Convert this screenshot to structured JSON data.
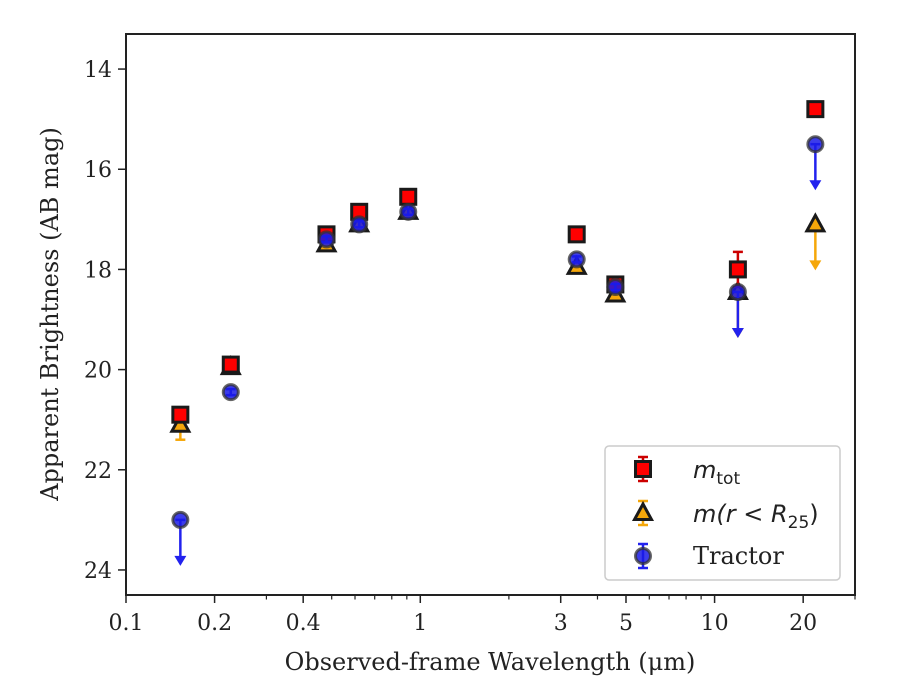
{
  "chart_data": {
    "type": "scatter",
    "xlabel": "Observed-frame Wavelength (μm)",
    "ylabel": "Apparent Brightness (AB mag)",
    "xscale": "log",
    "xlim": [
      0.1,
      30
    ],
    "ylim": [
      24.5,
      13.3
    ],
    "y_inverted": true,
    "x_ticks": [
      {
        "value": 0.1,
        "label": "0.1"
      },
      {
        "value": 0.2,
        "label": "0.2"
      },
      {
        "value": 0.4,
        "label": "0.4"
      },
      {
        "value": 1,
        "label": "1"
      },
      {
        "value": 3,
        "label": "3"
      },
      {
        "value": 5,
        "label": "5"
      },
      {
        "value": 10,
        "label": "10"
      },
      {
        "value": 20,
        "label": "20"
      }
    ],
    "y_ticks": [
      14,
      16,
      18,
      20,
      22,
      24
    ],
    "grid": false,
    "legend_position": "bottom-right",
    "series": [
      {
        "name": "m_tot",
        "marker": "square",
        "face_color": "#ff0000",
        "edge_color": "#1a1a1a",
        "errbar_color": "#cc0000",
        "points": [
          {
            "x": 0.153,
            "y": 20.9
          },
          {
            "x": 0.227,
            "y": 19.9
          },
          {
            "x": 0.48,
            "y": 17.3
          },
          {
            "x": 0.62,
            "y": 16.85
          },
          {
            "x": 0.91,
            "y": 16.55
          },
          {
            "x": 3.4,
            "y": 17.3
          },
          {
            "x": 4.6,
            "y": 18.3
          },
          {
            "x": 12.0,
            "y": 18.0,
            "err": 0.35
          },
          {
            "x": 22.0,
            "y": 14.8
          }
        ]
      },
      {
        "name": "m(r < R25)",
        "marker": "triangle",
        "face_color": "#f5a70a",
        "edge_color": "#1a1a1a",
        "errbar_color": "#f5a70a",
        "points": [
          {
            "x": 0.153,
            "y": 21.1,
            "err": 0.3
          },
          {
            "x": 0.227,
            "y": 19.95
          },
          {
            "x": 0.48,
            "y": 17.5
          },
          {
            "x": 0.62,
            "y": 17.1
          },
          {
            "x": 0.91,
            "y": 16.85
          },
          {
            "x": 3.4,
            "y": 17.95
          },
          {
            "x": 4.6,
            "y": 18.5
          },
          {
            "x": 12.0,
            "y": 18.45,
            "upper_limit": true
          },
          {
            "x": 22.0,
            "y": 17.1,
            "upper_limit": true
          }
        ]
      },
      {
        "name": "Tractor",
        "marker": "circle",
        "face_color": "#1a1ae6",
        "edge_color": "#333333",
        "errbar_color": "#2222ee",
        "points": [
          {
            "x": 0.153,
            "y": 23.0,
            "upper_limit": true
          },
          {
            "x": 0.227,
            "y": 20.45
          },
          {
            "x": 0.48,
            "y": 17.4
          },
          {
            "x": 0.62,
            "y": 17.1
          },
          {
            "x": 0.91,
            "y": 16.85
          },
          {
            "x": 3.4,
            "y": 17.8
          },
          {
            "x": 4.6,
            "y": 18.35
          },
          {
            "x": 12.0,
            "y": 18.45,
            "upper_limit": true
          },
          {
            "x": 22.0,
            "y": 15.5,
            "upper_limit": true
          }
        ]
      }
    ],
    "legend": [
      {
        "label_base": "m",
        "label_sub": "tot",
        "marker": "square"
      },
      {
        "label_italic": "m(r < R",
        "label_sub": "25",
        "label_tail": ")",
        "marker": "triangle"
      },
      {
        "label_plain": "Tractor",
        "marker": "circle"
      }
    ]
  }
}
